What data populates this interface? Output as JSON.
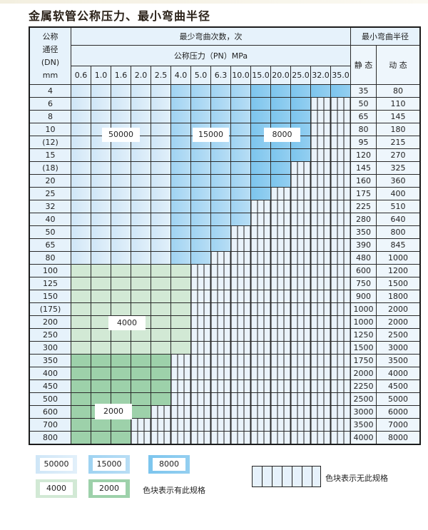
{
  "title": "金属软管公称压力、最小弯曲半径",
  "header": {
    "dn_label": [
      "公称",
      "通径",
      "(DN)",
      "mm"
    ],
    "cycles_label": "最少弯曲次数，次",
    "pressure_label": "公称压力（PN）MPa",
    "radius_label": "最小弯曲半径",
    "static_label": "静 态",
    "dynamic_label": "动 态",
    "pressures": [
      "0.6",
      "1.0",
      "1.6",
      "2.0",
      "2.5",
      "4.0",
      "5.0",
      "6.3",
      "10.0",
      "15.0",
      "20.0",
      "25.0",
      "32.0",
      "35.0"
    ]
  },
  "tier_legend": {
    "A": "50000",
    "B": "15000",
    "C": "8000",
    "D": "4000",
    "E": "2000",
    "X": "无此规格"
  },
  "colors": {
    "A": "#cfe6f7",
    "B": "#a9d8f3",
    "C": "#7cc5ee",
    "D": "#d2e9d5",
    "E": "#9dd1aa",
    "X": "#eaf3fb"
  },
  "rows": [
    {
      "dn": "4",
      "static": "35",
      "dynamic": "80",
      "tiers": "AAAAABBBBCCCCC"
    },
    {
      "dn": "6",
      "static": "50",
      "dynamic": "110",
      "tiers": "AAAAABBBBCCCXX"
    },
    {
      "dn": "8",
      "static": "65",
      "dynamic": "145",
      "tiers": "AAAAABBBBCCCXX"
    },
    {
      "dn": "10",
      "static": "80",
      "dynamic": "180",
      "tiers": "AAAAABBBBCCCXX"
    },
    {
      "dn": "(12)",
      "static": "95",
      "dynamic": "215",
      "tiers": "AAAAABBBBCCCXX"
    },
    {
      "dn": "15",
      "static": "120",
      "dynamic": "270",
      "tiers": "AAAAABBBBCCCXX"
    },
    {
      "dn": "(18)",
      "static": "145",
      "dynamic": "325",
      "tiers": "AAAAABBBBCCXXX"
    },
    {
      "dn": "20",
      "static": "160",
      "dynamic": "360",
      "tiers": "AAAAABBBBCCXXX"
    },
    {
      "dn": "25",
      "static": "175",
      "dynamic": "400",
      "tiers": "AAAAABBBBCXXXX"
    },
    {
      "dn": "32",
      "static": "225",
      "dynamic": "510",
      "tiers": "AAAAABBBBXXXXX"
    },
    {
      "dn": "40",
      "static": "280",
      "dynamic": "640",
      "tiers": "AAAAABBBBXXXXX"
    },
    {
      "dn": "50",
      "static": "350",
      "dynamic": "800",
      "tiers": "AAAAABBBXXXXXX"
    },
    {
      "dn": "65",
      "static": "390",
      "dynamic": "845",
      "tiers": "AAAAABBBXXXXXX"
    },
    {
      "dn": "80",
      "static": "480",
      "dynamic": "1000",
      "tiers": "AAAAABBXXXXXXX"
    },
    {
      "dn": "100",
      "static": "600",
      "dynamic": "1200",
      "tiers": "DDDDDDXXXXXXXX"
    },
    {
      "dn": "125",
      "static": "750",
      "dynamic": "1500",
      "tiers": "DDDDDDXXXXXXXX"
    },
    {
      "dn": "150",
      "static": "900",
      "dynamic": "1800",
      "tiers": "DDDDDDXXXXXXXX"
    },
    {
      "dn": "(175)",
      "static": "1000",
      "dynamic": "2000",
      "tiers": "DDDDDDXXXXXXXX"
    },
    {
      "dn": "200",
      "static": "1000",
      "dynamic": "2000",
      "tiers": "DDDDDDXXXXXXXX"
    },
    {
      "dn": "250",
      "static": "1250",
      "dynamic": "2500",
      "tiers": "DDDDDDXXXXXXXX"
    },
    {
      "dn": "300",
      "static": "1500",
      "dynamic": "3000",
      "tiers": "DDDDDDXXXXXXXX"
    },
    {
      "dn": "350",
      "static": "1750",
      "dynamic": "3500",
      "tiers": "EEEEEXXXXXXXXX"
    },
    {
      "dn": "400",
      "static": "2000",
      "dynamic": "4000",
      "tiers": "EEEEEXXXXXXXXX"
    },
    {
      "dn": "450",
      "static": "2250",
      "dynamic": "4500",
      "tiers": "EEEEEXXXXXXXXX"
    },
    {
      "dn": "500",
      "static": "2500",
      "dynamic": "5000",
      "tiers": "EEEEEXXXXXXXXX"
    },
    {
      "dn": "600",
      "static": "3000",
      "dynamic": "6000",
      "tiers": "EEEEXXXXXXXXXX"
    },
    {
      "dn": "700",
      "static": "3500",
      "dynamic": "7000",
      "tiers": "EEEXXXXXXXXXXX"
    },
    {
      "dn": "800",
      "static": "4000",
      "dynamic": "8000",
      "tiers": "EEEXXXXXXXXXXX"
    }
  ],
  "region_labels": {
    "a": "50000",
    "b": "15000",
    "c": "8000",
    "d": "4000",
    "e": "2000"
  },
  "legend": {
    "items": [
      "50000",
      "15000",
      "8000",
      "4000",
      "2000"
    ],
    "exists_text": "色块表示有此规格",
    "none_text": "色块表示无此规格"
  }
}
